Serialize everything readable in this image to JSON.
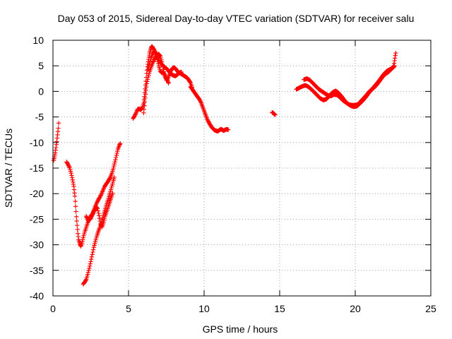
{
  "chart_data": {
    "type": "scatter",
    "title": "Day 053 of 2015, Sidereal Day-to-day VTEC variation (SDTVAR) for receiver salu",
    "xlabel": "GPS time / hours",
    "ylabel": "SDTVAR / TECUs",
    "xlim": [
      0,
      25
    ],
    "ylim": [
      -40,
      10
    ],
    "xticks": [
      0,
      5,
      10,
      15,
      20,
      25
    ],
    "yticks": [
      10,
      5,
      0,
      -5,
      -10,
      -15,
      -20,
      -25,
      -30,
      -35,
      -40
    ],
    "grid": true,
    "marker": "plus",
    "color": "#ff0000",
    "series": [
      {
        "name": "SDTVAR",
        "segments": [
          [
            [
              0.05,
              -13.5
            ],
            [
              0.1,
              -12.8
            ],
            [
              0.15,
              -12.0
            ],
            [
              0.2,
              -11.0
            ],
            [
              0.25,
              -9.8
            ],
            [
              0.3,
              -8.5
            ],
            [
              0.35,
              -7.2
            ],
            [
              0.38,
              -6.2
            ]
          ],
          [
            [
              0.9,
              -13.8
            ],
            [
              1.0,
              -14.3
            ],
            [
              1.1,
              -14.9
            ],
            [
              1.2,
              -16.0
            ],
            [
              1.3,
              -17.3
            ],
            [
              1.38,
              -18.6
            ],
            [
              1.45,
              -20.5
            ],
            [
              1.5,
              -22.5
            ],
            [
              1.55,
              -24.5
            ],
            [
              1.6,
              -26.2
            ],
            [
              1.65,
              -27.8
            ],
            [
              1.7,
              -29.0
            ],
            [
              1.78,
              -29.8
            ],
            [
              1.85,
              -30.3
            ],
            [
              1.92,
              -29.7
            ],
            [
              2.0,
              -28.6
            ],
            [
              2.1,
              -27.5
            ],
            [
              2.2,
              -26.6
            ],
            [
              2.3,
              -25.7
            ],
            [
              2.4,
              -25.0
            ],
            [
              2.5,
              -24.4
            ],
            [
              2.6,
              -24.0
            ],
            [
              2.7,
              -23.3
            ],
            [
              2.8,
              -22.5
            ],
            [
              2.9,
              -21.8
            ],
            [
              3.0,
              -21.2
            ],
            [
              3.1,
              -20.7
            ],
            [
              3.2,
              -20.1
            ],
            [
              3.3,
              -19.4
            ],
            [
              3.4,
              -18.7
            ],
            [
              3.5,
              -18.2
            ],
            [
              3.6,
              -17.8
            ],
            [
              3.7,
              -17.3
            ],
            [
              3.8,
              -16.8
            ],
            [
              3.9,
              -16.0
            ],
            [
              4.0,
              -15.0
            ],
            [
              4.1,
              -13.8
            ],
            [
              4.2,
              -12.5
            ],
            [
              4.3,
              -11.3
            ],
            [
              4.4,
              -10.5
            ],
            [
              4.45,
              -10.2
            ]
          ],
          [
            [
              2.0,
              -37.7
            ],
            [
              2.1,
              -37.3
            ],
            [
              2.2,
              -36.8
            ],
            [
              2.3,
              -35.8
            ],
            [
              2.4,
              -34.6
            ],
            [
              2.5,
              -33.3
            ],
            [
              2.6,
              -31.9
            ],
            [
              2.7,
              -30.5
            ],
            [
              2.8,
              -29.4
            ],
            [
              2.9,
              -28.3
            ],
            [
              3.0,
              -27.4
            ],
            [
              3.1,
              -26.6
            ],
            [
              3.2,
              -25.7
            ],
            [
              3.3,
              -24.7
            ],
            [
              3.4,
              -23.6
            ],
            [
              3.5,
              -22.6
            ],
            [
              3.6,
              -21.6
            ],
            [
              3.7,
              -20.6
            ],
            [
              3.8,
              -19.6
            ],
            [
              3.9,
              -18.5
            ],
            [
              4.0,
              -17.4
            ],
            [
              4.05,
              -16.8
            ]
          ],
          [
            [
              2.2,
              -24.4
            ],
            [
              2.35,
              -25.3
            ],
            [
              2.5,
              -24.8
            ],
            [
              2.65,
              -23.9
            ],
            [
              2.75,
              -23.2
            ],
            [
              2.85,
              -22.6
            ],
            [
              2.95,
              -22.9
            ],
            [
              3.05,
              -24.3
            ],
            [
              3.15,
              -25.9
            ],
            [
              3.25,
              -26.5
            ],
            [
              3.35,
              -25.6
            ],
            [
              3.45,
              -24.4
            ],
            [
              3.55,
              -23.5
            ],
            [
              3.65,
              -22.6
            ],
            [
              3.75,
              -21.7
            ],
            [
              3.85,
              -20.8
            ],
            [
              3.95,
              -19.9
            ]
          ],
          [
            [
              5.3,
              -5.3
            ],
            [
              5.4,
              -4.8
            ],
            [
              5.5,
              -4.2
            ],
            [
              5.6,
              -3.5
            ],
            [
              5.7,
              -3.4
            ],
            [
              5.8,
              -3.6
            ],
            [
              5.9,
              -3.3
            ],
            [
              6.0,
              -2.3
            ],
            [
              6.05,
              -1.0
            ],
            [
              6.1,
              0.5
            ],
            [
              6.15,
              2.0
            ],
            [
              6.2,
              3.5
            ],
            [
              6.25,
              4.8
            ],
            [
              6.3,
              5.8
            ],
            [
              6.35,
              6.7
            ],
            [
              6.4,
              7.5
            ],
            [
              6.45,
              8.1
            ],
            [
              6.5,
              8.6
            ],
            [
              6.55,
              8.8
            ],
            [
              6.6,
              8.6
            ],
            [
              6.7,
              8.1
            ],
            [
              6.8,
              7.5
            ],
            [
              6.9,
              6.9
            ],
            [
              7.0,
              6.2
            ],
            [
              7.1,
              5.7
            ],
            [
              7.2,
              5.3
            ],
            [
              7.3,
              5.0
            ],
            [
              7.4,
              4.7
            ],
            [
              7.5,
              4.5
            ],
            [
              7.6,
              4.2
            ],
            [
              7.7,
              3.8
            ],
            [
              7.8,
              3.5
            ],
            [
              7.9,
              3.2
            ],
            [
              8.0,
              3.1
            ],
            [
              8.1,
              3.0
            ],
            [
              8.2,
              3.2
            ],
            [
              8.3,
              3.5
            ],
            [
              8.4,
              3.7
            ],
            [
              8.5,
              3.8
            ]
          ],
          [
            [
              6.0,
              -4.2
            ],
            [
              6.05,
              -2.8
            ],
            [
              6.1,
              -1.3
            ],
            [
              6.15,
              0.2
            ],
            [
              6.2,
              1.5
            ],
            [
              6.3,
              2.8
            ],
            [
              6.4,
              3.9
            ],
            [
              6.5,
              4.8
            ],
            [
              6.6,
              5.6
            ],
            [
              6.7,
              6.2
            ],
            [
              6.8,
              6.7
            ],
            [
              6.9,
              7.1
            ],
            [
              7.0,
              7.3
            ],
            [
              7.1,
              6.9
            ],
            [
              7.2,
              5.8
            ],
            [
              7.3,
              4.3
            ],
            [
              7.4,
              3.0
            ],
            [
              7.5,
              2.2
            ],
            [
              7.6,
              2.5
            ],
            [
              7.7,
              3.3
            ],
            [
              7.8,
              4.0
            ],
            [
              7.9,
              4.5
            ],
            [
              8.0,
              4.7
            ],
            [
              8.1,
              4.5
            ],
            [
              8.2,
              4.1
            ],
            [
              8.3,
              3.7
            ],
            [
              8.5,
              3.4
            ],
            [
              8.7,
              3.0
            ],
            [
              8.9,
              2.6
            ],
            [
              9.1,
              1.7
            ],
            [
              9.2,
              0.8
            ]
          ],
          [
            [
              6.3,
              4.3
            ],
            [
              6.4,
              5.6
            ],
            [
              6.5,
              6.6
            ],
            [
              6.6,
              7.4
            ],
            [
              6.7,
              7.8
            ],
            [
              6.8,
              7.5
            ],
            [
              6.9,
              6.3
            ],
            [
              7.0,
              5.0
            ],
            [
              7.1,
              4.0
            ],
            [
              7.2,
              3.6
            ],
            [
              7.3,
              3.8
            ],
            [
              7.4,
              3.2
            ],
            [
              7.5,
              2.6
            ],
            [
              7.6,
              2.0
            ],
            [
              7.65,
              1.6
            ]
          ],
          [
            [
              9.1,
              0.9
            ],
            [
              9.2,
              0.5
            ],
            [
              9.5,
              -0.8
            ],
            [
              9.6,
              -1.2
            ],
            [
              9.7,
              -1.6
            ],
            [
              9.8,
              -2.2
            ],
            [
              9.9,
              -3.0
            ],
            [
              10.0,
              -3.8
            ],
            [
              10.1,
              -4.6
            ],
            [
              10.2,
              -5.4
            ],
            [
              10.3,
              -6.0
            ],
            [
              10.4,
              -6.5
            ],
            [
              10.5,
              -7.0
            ],
            [
              10.6,
              -7.3
            ],
            [
              10.7,
              -7.6
            ],
            [
              10.8,
              -7.7
            ],
            [
              10.9,
              -7.8
            ],
            [
              11.0,
              -7.6
            ],
            [
              11.1,
              -7.4
            ],
            [
              11.2,
              -7.5
            ],
            [
              11.3,
              -7.7
            ],
            [
              11.4,
              -7.5
            ],
            [
              11.5,
              -7.4
            ],
            [
              11.6,
              -7.5
            ]
          ],
          [
            [
              14.5,
              -4.1
            ],
            [
              14.6,
              -4.3
            ],
            [
              14.7,
              -4.6
            ]
          ],
          [
            [
              16.1,
              0.4
            ],
            [
              16.3,
              0.7
            ],
            [
              16.5,
              1.0
            ],
            [
              16.7,
              1.2
            ],
            [
              16.9,
              0.9
            ],
            [
              17.1,
              0.4
            ],
            [
              17.3,
              -0.2
            ],
            [
              17.5,
              -0.8
            ],
            [
              17.7,
              -1.4
            ],
            [
              17.9,
              -1.7
            ],
            [
              18.1,
              -1.5
            ],
            [
              18.3,
              -0.8
            ],
            [
              18.5,
              -0.2
            ],
            [
              18.7,
              0.1
            ],
            [
              18.9,
              -0.3
            ],
            [
              19.1,
              -1.0
            ],
            [
              19.3,
              -1.8
            ],
            [
              19.5,
              -2.4
            ],
            [
              19.7,
              -2.8
            ],
            [
              19.9,
              -3.0
            ],
            [
              20.1,
              -2.9
            ],
            [
              20.3,
              -2.4
            ],
            [
              20.5,
              -1.8
            ],
            [
              20.7,
              -1.1
            ],
            [
              20.9,
              -0.3
            ],
            [
              21.1,
              0.4
            ],
            [
              21.3,
              1.1
            ],
            [
              21.5,
              1.8
            ],
            [
              21.7,
              2.6
            ],
            [
              21.9,
              3.4
            ],
            [
              22.1,
              4.0
            ],
            [
              22.3,
              4.3
            ],
            [
              22.5,
              4.6
            ],
            [
              22.6,
              5.0
            ]
          ],
          [
            [
              16.6,
              2.3
            ],
            [
              16.8,
              2.5
            ],
            [
              17.0,
              2.2
            ],
            [
              17.2,
              1.6
            ],
            [
              17.4,
              1.0
            ],
            [
              17.6,
              0.4
            ],
            [
              17.8,
              0.0
            ],
            [
              18.0,
              -0.4
            ],
            [
              18.2,
              -0.8
            ],
            [
              18.4,
              -0.9
            ],
            [
              18.6,
              -0.6
            ],
            [
              18.8,
              -0.7
            ],
            [
              19.0,
              -1.2
            ],
            [
              19.2,
              -1.8
            ],
            [
              19.4,
              -2.2
            ],
            [
              19.6,
              -2.6
            ],
            [
              19.8,
              -2.7
            ],
            [
              20.0,
              -2.7
            ],
            [
              20.2,
              -2.5
            ],
            [
              20.4,
              -1.8
            ],
            [
              20.6,
              -1.2
            ],
            [
              20.8,
              -0.5
            ],
            [
              21.0,
              0.2
            ],
            [
              21.2,
              0.6
            ],
            [
              21.4,
              1.2
            ],
            [
              21.6,
              2.0
            ],
            [
              21.8,
              2.8
            ],
            [
              22.0,
              3.4
            ],
            [
              22.2,
              3.8
            ],
            [
              22.4,
              4.4
            ],
            [
              22.55,
              5.0
            ],
            [
              22.6,
              6.0
            ],
            [
              22.65,
              7.0
            ],
            [
              22.68,
              7.5
            ]
          ]
        ]
      }
    ]
  }
}
